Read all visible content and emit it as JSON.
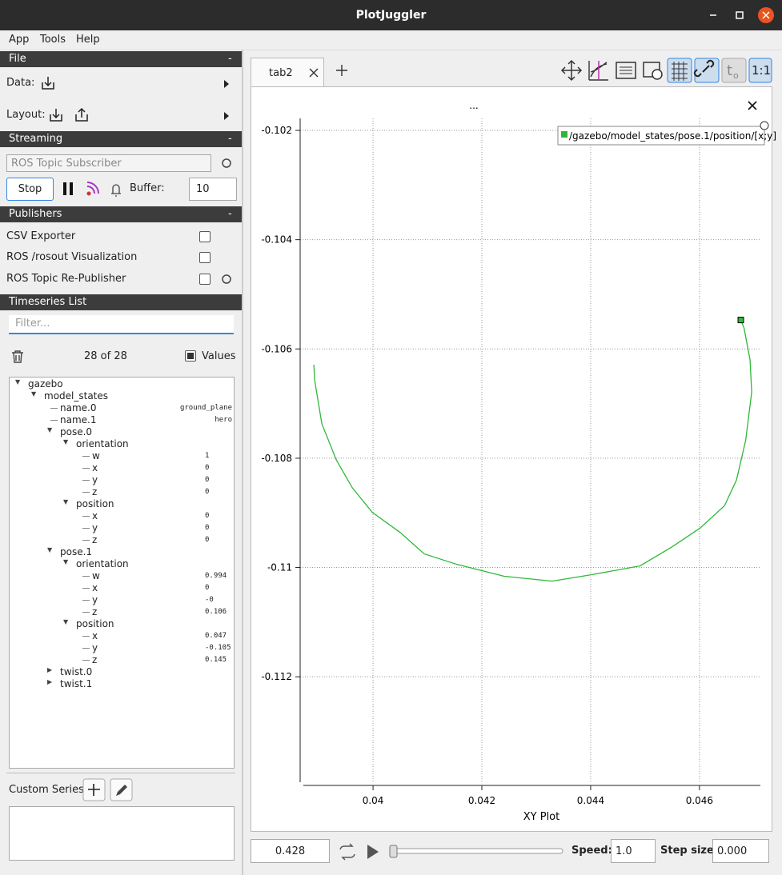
{
  "window": {
    "title": "PlotJuggler"
  },
  "menu": [
    "App",
    "Tools",
    "Help"
  ],
  "sidebar": {
    "file": {
      "header": "File",
      "collapse": "-",
      "data": "Data:",
      "layout": "Layout:"
    },
    "streaming": {
      "header": "Streaming",
      "collapse": "-",
      "source": "ROS Topic Subscriber",
      "stop": "Stop",
      "buffer_label": "Buffer:",
      "buffer": "10"
    },
    "publishers": {
      "header": "Publishers",
      "collapse": "-",
      "items": [
        "CSV Exporter",
        "ROS /rosout Visualization",
        "ROS Topic Re-Publisher"
      ]
    },
    "timeseries": {
      "header": "Timeseries List",
      "filter_placeholder": "Filter...",
      "count": "28 of 28",
      "values_label": "Values",
      "tree": [
        {
          "label": "gazebo",
          "depth": 0,
          "expanded": true
        },
        {
          "label": "model_states",
          "depth": 1,
          "expanded": true
        },
        {
          "label": "name.0",
          "depth": 2,
          "value": "ground_plane"
        },
        {
          "label": "name.1",
          "depth": 2,
          "value": "hero"
        },
        {
          "label": "pose.0",
          "depth": 2,
          "expanded": true
        },
        {
          "label": "orientation",
          "depth": 3,
          "expanded": true
        },
        {
          "label": "w",
          "depth": 4,
          "value": "1"
        },
        {
          "label": "x",
          "depth": 4,
          "value": "0"
        },
        {
          "label": "y",
          "depth": 4,
          "value": "0"
        },
        {
          "label": "z",
          "depth": 4,
          "value": "0"
        },
        {
          "label": "position",
          "depth": 3,
          "expanded": true
        },
        {
          "label": "x",
          "depth": 4,
          "value": "0"
        },
        {
          "label": "y",
          "depth": 4,
          "value": "0"
        },
        {
          "label": "z",
          "depth": 4,
          "value": "0"
        },
        {
          "label": "pose.1",
          "depth": 2,
          "expanded": true
        },
        {
          "label": "orientation",
          "depth": 3,
          "expanded": true
        },
        {
          "label": "w",
          "depth": 4,
          "value": "0.994"
        },
        {
          "label": "x",
          "depth": 4,
          "value": "0"
        },
        {
          "label": "y",
          "depth": 4,
          "value": "-0"
        },
        {
          "label": "z",
          "depth": 4,
          "value": "0.106"
        },
        {
          "label": "position",
          "depth": 3,
          "expanded": true
        },
        {
          "label": "x",
          "depth": 4,
          "value": "0.047"
        },
        {
          "label": "y",
          "depth": 4,
          "value": "-0.105"
        },
        {
          "label": "z",
          "depth": 4,
          "value": "0.145"
        },
        {
          "label": "twist.0",
          "depth": 2,
          "expanded": false
        },
        {
          "label": "twist.1",
          "depth": 2,
          "expanded": false
        }
      ]
    },
    "custom_series": {
      "label": "Custom Series:"
    }
  },
  "tabs": {
    "active": "tab2"
  },
  "toolbar": {
    "ratio": "1:1"
  },
  "chart_data": {
    "type": "line",
    "title": "...",
    "x_label": "XY Plot",
    "x": [
      0.038912,
      0.038926,
      0.039059,
      0.039324,
      0.039618,
      0.039985,
      0.0405,
      0.04094,
      0.04153,
      0.04241,
      0.04329,
      0.04403,
      0.04491,
      0.0455,
      0.04601,
      0.04646,
      0.04668,
      0.04685,
      0.04696,
      0.04693,
      0.04682,
      0.04676
    ],
    "series": [
      {
        "name": "/gazebo/model_states/pose.1/position/[x;y]",
        "color": "#2fb838",
        "values": [
          -0.10629,
          -0.10657,
          -0.10737,
          -0.10803,
          -0.10854,
          -0.10899,
          -0.10936,
          -0.10975,
          -0.10994,
          -0.11016,
          -0.11025,
          -0.11013,
          -0.10997,
          -0.10962,
          -0.10928,
          -0.10887,
          -0.1084,
          -0.10767,
          -0.10679,
          -0.1062,
          -0.10562,
          -0.10547
        ]
      }
    ],
    "xlim": [
      0.03866,
      0.04712
    ],
    "ylim": [
      -0.11393,
      -0.10178
    ],
    "xticks": [
      0.04,
      0.042,
      0.044,
      0.046
    ],
    "yticks": [
      -0.112,
      -0.11,
      -0.108,
      -0.106,
      -0.104,
      -0.102
    ],
    "grid": true,
    "legend": "top-right"
  },
  "playback": {
    "time": "0.428",
    "speed_label": "Speed:",
    "speed": "1.0",
    "step_label": "Step size:",
    "step": "0.000"
  }
}
